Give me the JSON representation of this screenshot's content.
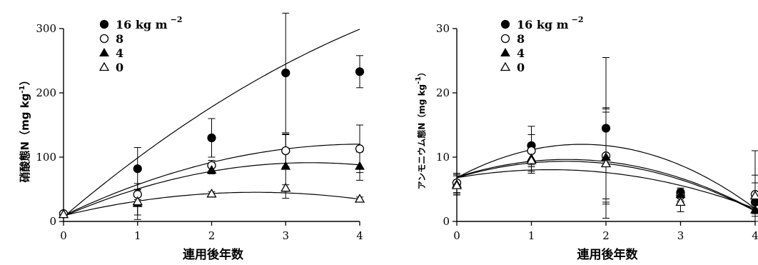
{
  "chart_data": [
    {
      "type": "scatter",
      "xlabel": "連用後年数",
      "ylabel": "硝酸態N（mg kg",
      "ylabel_sup": "-1",
      "ylabel_close": "）",
      "xlim": [
        0,
        4
      ],
      "ylim": [
        0,
        300
      ],
      "xticks": [
        "0",
        "1",
        "2",
        "3",
        "4"
      ],
      "yticks": [
        "0",
        "100",
        "200",
        "300"
      ],
      "ytick_values": [
        0,
        100,
        200,
        300
      ],
      "legend_placement": "top-left",
      "series": [
        {
          "name": "16 kg m",
          "name_sup": "−2",
          "marker": "filled-circle",
          "x": [
            0,
            1,
            2,
            3,
            4
          ],
          "y": [
            12,
            82,
            130,
            231,
            233
          ],
          "err": [
            3,
            33,
            30,
            93,
            25
          ],
          "curve": [
            7,
            98,
            -6.25
          ]
        },
        {
          "name": "8",
          "marker": "open-circle",
          "x": [
            0,
            1,
            2,
            3,
            4
          ],
          "y": [
            12,
            42,
            87,
            110,
            113
          ],
          "err": [
            3,
            8,
            8,
            25,
            37
          ],
          "curve": [
            9,
            55,
            -6.8
          ]
        },
        {
          "name": "4",
          "marker": "filled-triangle",
          "x": [
            0,
            1,
            2,
            3,
            4
          ],
          "y": [
            11,
            28,
            80,
            86,
            86
          ],
          "err": [
            3,
            18,
            6,
            50,
            22
          ],
          "curve": [
            8,
            50,
            -7.5
          ]
        },
        {
          "name": "0",
          "marker": "open-triangle",
          "x": [
            0,
            1,
            2,
            3,
            4
          ],
          "y": [
            11,
            31,
            43,
            52,
            35
          ],
          "err": [
            3,
            28,
            3,
            5,
            3
          ],
          "curve": [
            9,
            28,
            -5.4
          ]
        }
      ]
    },
    {
      "type": "scatter",
      "xlabel": "連用後年数",
      "ylabel": "アンモニウム態N（mg kg",
      "ylabel_sup": "-1",
      "ylabel_close": "）",
      "xlim": [
        0,
        4
      ],
      "ylim": [
        0,
        30
      ],
      "xticks": [
        "0",
        "1",
        "2",
        "3",
        "4"
      ],
      "yticks": [
        "0",
        "10",
        "20",
        "30"
      ],
      "ytick_values": [
        0,
        10,
        20,
        30
      ],
      "legend_placement": "top-left",
      "series": [
        {
          "name": "16 kg m",
          "name_sup": "−2",
          "marker": "filled-circle",
          "x": [
            0,
            1,
            2,
            3,
            4
          ],
          "y": [
            6,
            11.8,
            14.5,
            4.5,
            3
          ],
          "err": [
            1.5,
            3,
            11,
            0.5,
            8
          ],
          "curve": [
            6.8,
            6.2,
            -1.85
          ]
        },
        {
          "name": "8",
          "marker": "open-circle",
          "x": [
            0,
            1,
            2,
            3,
            4
          ],
          "y": [
            6,
            11,
            10.2,
            4,
            4.2
          ],
          "err": [
            1.5,
            2.5,
            7.5,
            1,
            3
          ],
          "curve": [
            6.9,
            3.7,
            -1.25
          ]
        },
        {
          "name": "4",
          "marker": "filled-triangle",
          "x": [
            0,
            1,
            2,
            3,
            4
          ],
          "y": [
            5.8,
            9.8,
            10,
            4.2,
            1.8
          ],
          "err": [
            1.5,
            2,
            7,
            1,
            1
          ],
          "curve": [
            6.8,
            3.5,
            -1.2
          ]
        },
        {
          "name": "0",
          "marker": "open-triangle",
          "x": [
            0,
            1,
            2,
            3,
            4
          ],
          "y": [
            5.6,
            9.5,
            9,
            3,
            4
          ],
          "err": [
            1.5,
            2,
            8.5,
            1.5,
            2
          ],
          "curve": [
            6.8,
            2,
            -0.8
          ]
        }
      ]
    }
  ]
}
